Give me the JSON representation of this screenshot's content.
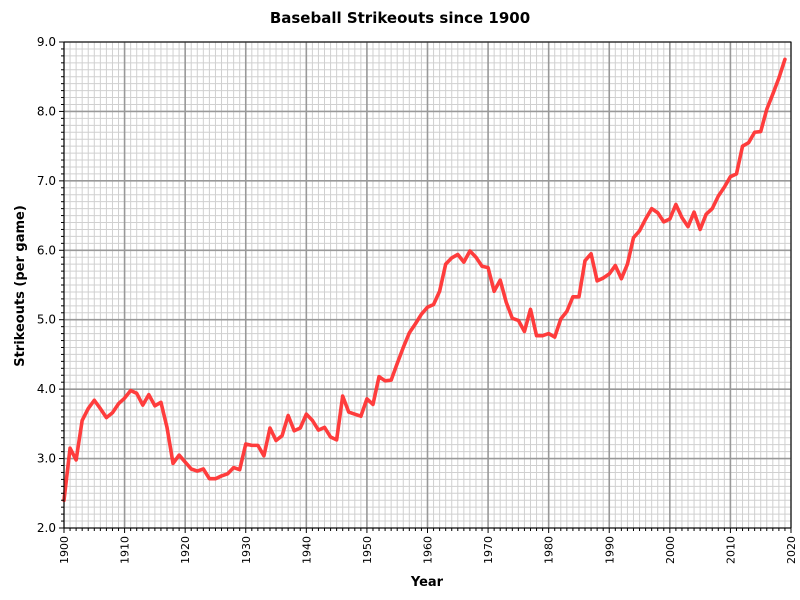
{
  "chart_data": {
    "type": "line",
    "title": "Baseball Strikeouts since 1900",
    "xlabel": "Year",
    "ylabel": "Strikeouts (per game)",
    "xlim": [
      1900,
      2020
    ],
    "ylim": [
      2.0,
      9.0
    ],
    "xticks": [
      1900,
      1910,
      1920,
      1930,
      1940,
      1950,
      1960,
      1970,
      1980,
      1990,
      2000,
      2010,
      2020
    ],
    "yticks": [
      2.0,
      3.0,
      4.0,
      5.0,
      6.0,
      7.0,
      8.0,
      9.0
    ],
    "grid": true,
    "legend": "none",
    "line_color": "#ff3333",
    "series": [
      {
        "x": [
          1900,
          1901,
          1902,
          1903,
          1904,
          1905,
          1906,
          1907,
          1908,
          1909,
          1910,
          1911,
          1912,
          1913,
          1914,
          1915,
          1916,
          1917,
          1918,
          1919,
          1920,
          1921,
          1922,
          1923,
          1924,
          1925,
          1926,
          1927,
          1928,
          1929,
          1930,
          1931,
          1932,
          1933,
          1934,
          1935,
          1936,
          1937,
          1938,
          1939,
          1940,
          1941,
          1942,
          1943,
          1944,
          1945,
          1946,
          1947,
          1948,
          1949,
          1950,
          1951,
          1952,
          1953,
          1954,
          1955,
          1956,
          1957,
          1958,
          1959,
          1960,
          1961,
          1962,
          1963,
          1964,
          1965,
          1966,
          1967,
          1968,
          1969,
          1970,
          1971,
          1972,
          1973,
          1974,
          1975,
          1976,
          1977,
          1978,
          1979,
          1980,
          1981,
          1982,
          1983,
          1984,
          1985,
          1986,
          1987,
          1988,
          1989,
          1990,
          1991,
          1992,
          1993,
          1994,
          1995,
          1996,
          1997,
          1998,
          1999,
          2000,
          2001,
          2002,
          2003,
          2004,
          2005,
          2006,
          2007,
          2008,
          2009,
          2010,
          2011,
          2012,
          2013,
          2014,
          2015,
          2016,
          2017,
          2018,
          2019
        ],
        "y": [
          2.4,
          3.15,
          2.98,
          3.55,
          3.72,
          3.84,
          3.72,
          3.59,
          3.66,
          3.79,
          3.87,
          3.98,
          3.94,
          3.77,
          3.92,
          3.76,
          3.81,
          3.45,
          2.93,
          3.05,
          2.95,
          2.85,
          2.82,
          2.85,
          2.71,
          2.71,
          2.75,
          2.78,
          2.87,
          2.84,
          3.21,
          3.19,
          3.19,
          3.04,
          3.44,
          3.26,
          3.33,
          3.62,
          3.4,
          3.44,
          3.64,
          3.55,
          3.41,
          3.45,
          3.31,
          3.27,
          3.9,
          3.67,
          3.64,
          3.61,
          3.86,
          3.78,
          4.18,
          4.12,
          4.13,
          4.37,
          4.6,
          4.81,
          4.94,
          5.08,
          5.18,
          5.22,
          5.41,
          5.8,
          5.89,
          5.94,
          5.83,
          5.99,
          5.9,
          5.77,
          5.75,
          5.41,
          5.57,
          5.25,
          5.02,
          4.99,
          4.83,
          5.15,
          4.77,
          4.77,
          4.8,
          4.75,
          5.01,
          5.12,
          5.33,
          5.33,
          5.85,
          5.95,
          5.56,
          5.6,
          5.66,
          5.78,
          5.59,
          5.8,
          6.18,
          6.28,
          6.45,
          6.6,
          6.54,
          6.41,
          6.45,
          6.66,
          6.47,
          6.34,
          6.55,
          6.3,
          6.52,
          6.6,
          6.78,
          6.91,
          7.06,
          7.1,
          7.5,
          7.55,
          7.7,
          7.71,
          8.03,
          8.25,
          8.48,
          8.75
        ]
      }
    ]
  }
}
